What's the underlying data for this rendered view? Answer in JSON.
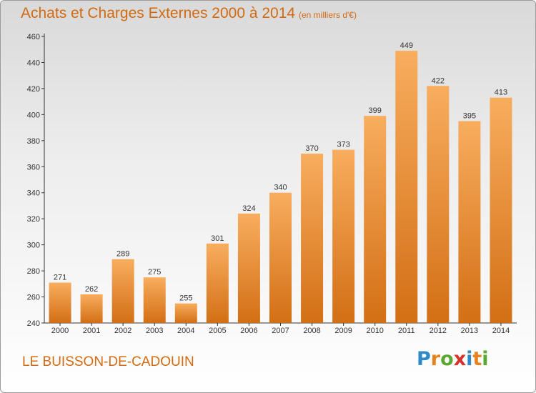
{
  "header": {
    "title": "Achats et Charges Externes 2000 à 2014",
    "subtitle": "(en milliers d'€)"
  },
  "footer": {
    "commune": "LE BUISSON-DE-CADOUIN",
    "logo_text": "Proxiti",
    "logo_colors": [
      "#2e89c9",
      "#e8821e",
      "#5aa832",
      "#d6302b",
      "#2e89c9",
      "#e8821e",
      "#5aa832"
    ]
  },
  "chart_data": {
    "type": "bar",
    "categories": [
      "2000",
      "2001",
      "2002",
      "2003",
      "2004",
      "2005",
      "2006",
      "2007",
      "2008",
      "2009",
      "2010",
      "2011",
      "2012",
      "2013",
      "2014"
    ],
    "values": [
      271,
      262,
      289,
      275,
      255,
      301,
      324,
      340,
      370,
      373,
      399,
      449,
      422,
      395,
      413
    ],
    "title": "Achats et Charges Externes 2000 à 2014",
    "subtitle": "(en milliers d'€)",
    "xlabel": "",
    "ylabel": "",
    "ylim": [
      240,
      460
    ],
    "yticks": [
      240,
      260,
      280,
      300,
      320,
      340,
      360,
      380,
      400,
      420,
      440,
      460
    ],
    "grid": false,
    "legend": "none",
    "bar_color_top": "#f8ad5e",
    "bar_color_bottom": "#d36f15"
  }
}
